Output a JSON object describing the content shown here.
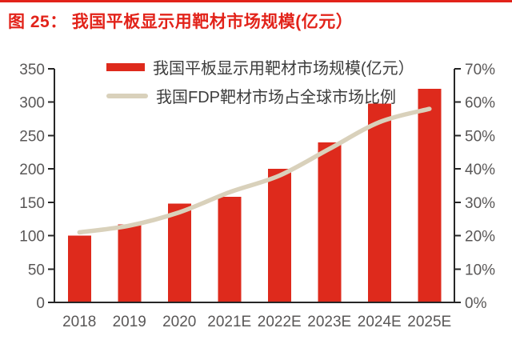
{
  "header": {
    "figure_label": "图 25：",
    "title": "我国平板显示用靶材市场规模(亿元）",
    "accent_color": "#e2231a"
  },
  "chart_data": {
    "type": "bar",
    "title": "我国平板显示用靶材市场规模(亿元）",
    "categories": [
      "2018",
      "2019",
      "2020",
      "2021E",
      "2022E",
      "2023E",
      "2024E",
      "2025E"
    ],
    "series": [
      {
        "name": "我国平板显示用靶材市场规模(亿元）",
        "type": "bar",
        "axis": "left",
        "color": "#de2a1c",
        "values": [
          100,
          117,
          148,
          158,
          200,
          240,
          298,
          320
        ]
      },
      {
        "name": "我国FDP靶材市场占全球市场比例",
        "type": "line",
        "axis": "right",
        "color": "#d9d1bb",
        "values_pct": [
          21,
          23,
          27,
          33,
          38,
          46,
          54,
          58
        ]
      }
    ],
    "left_axis": {
      "min": 0,
      "max": 350,
      "step": 50,
      "ticks": [
        "0",
        "50",
        "100",
        "150",
        "200",
        "250",
        "300",
        "350"
      ]
    },
    "right_axis": {
      "min": 0,
      "max": 70,
      "step": 10,
      "ticks": [
        "0%",
        "10%",
        "20%",
        "30%",
        "40%",
        "50%",
        "60%",
        "70%"
      ]
    },
    "legend_position": "top-center",
    "grid": false,
    "colors": {
      "axis_line": "#262626",
      "tick_label": "#595757",
      "legend_text": "#3d3d3d"
    }
  }
}
